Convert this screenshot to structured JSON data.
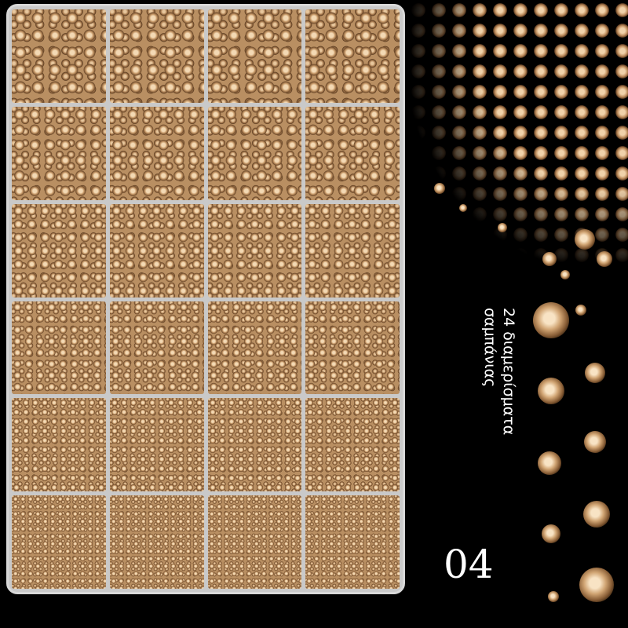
{
  "caption": {
    "line1": "24 διαμερίσματα",
    "line2": "σαμπάνιας"
  },
  "number": "04",
  "product": {
    "compartments": 24,
    "rows": 6,
    "columns": 4
  },
  "colors": {
    "background": "#000000",
    "stone": "#c99b6a",
    "tray": "#d8d8d8"
  }
}
